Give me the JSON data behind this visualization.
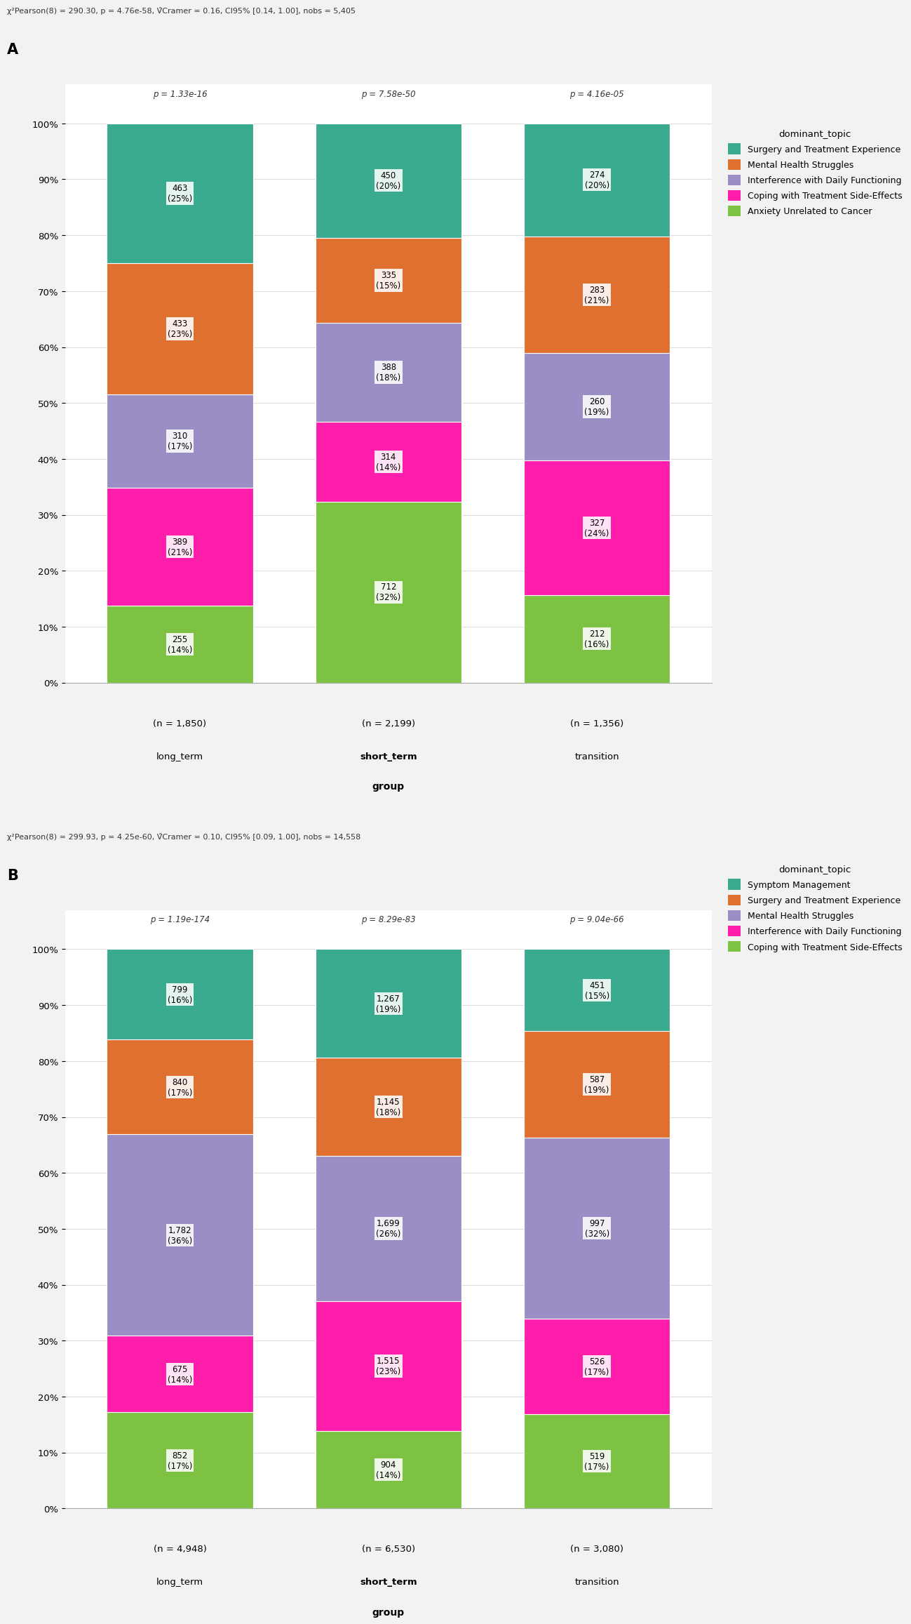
{
  "panel_A": {
    "stat_text": "χ²Pearson(8) = 290.30, p = 4.76e-58, V̂Cramer = 0.16, CI95% [0.14, 1.00], nobs = 5,405",
    "groups": [
      "long_term",
      "short_term",
      "transition"
    ],
    "n_labels": [
      "(n = 1,850)",
      "(n = 2,199)",
      "(n = 1,356)"
    ],
    "p_values": [
      "p = 1.33e-16",
      "p = 7.58e-50",
      "p = 4.16e-05"
    ],
    "topics": [
      "Surgery and Treatment Experience",
      "Mental Health Struggles",
      "Interference with Daily Functioning",
      "Coping with Treatment Side-Effects",
      "Anxiety Unrelated to Cancer"
    ],
    "colors": [
      "#3aab8e",
      "#e07030",
      "#9b8ec4",
      "#ff1dac",
      "#7dc242"
    ],
    "stack_order": [
      4,
      3,
      2,
      1,
      0
    ],
    "data": {
      "long_term": [
        463,
        433,
        310,
        389,
        255
      ],
      "short_term": [
        450,
        335,
        388,
        314,
        712
      ],
      "transition": [
        274,
        283,
        260,
        327,
        212
      ]
    },
    "pcts": {
      "long_term": [
        25,
        23,
        17,
        21,
        14
      ],
      "short_term": [
        20,
        15,
        18,
        14,
        32
      ],
      "transition": [
        20,
        21,
        19,
        24,
        16
      ]
    }
  },
  "panel_B": {
    "stat_text": "χ²Pearson(8) = 299.93, p = 4.25e-60, V̂Cramer = 0.10, CI95% [0.09, 1.00], nobs = 14,558",
    "groups": [
      "long_term",
      "short_term",
      "transition"
    ],
    "n_labels": [
      "(n = 4,948)",
      "(n = 6,530)",
      "(n = 3,080)"
    ],
    "p_values": [
      "p = 1.19e-174",
      "p = 8.29e-83",
      "p = 9.04e-66"
    ],
    "topics": [
      "Symptom Management",
      "Surgery and Treatment Experience",
      "Mental Health Struggles",
      "Interference with Daily Functioning",
      "Coping with Treatment Side-Effects"
    ],
    "colors": [
      "#3aab8e",
      "#e07030",
      "#9b8ec4",
      "#ff1dac",
      "#7dc242"
    ],
    "stack_order": [
      4,
      3,
      2,
      1,
      0
    ],
    "data": {
      "long_term": [
        799,
        840,
        1782,
        675,
        852
      ],
      "short_term": [
        1267,
        1145,
        1699,
        1515,
        904
      ],
      "transition": [
        451,
        587,
        997,
        526,
        519
      ]
    },
    "pcts": {
      "long_term": [
        16,
        17,
        36,
        14,
        17
      ],
      "short_term": [
        19,
        18,
        26,
        23,
        14
      ],
      "transition": [
        15,
        19,
        32,
        17,
        17
      ]
    }
  },
  "bg_color": "#f2f2f2",
  "plot_bg": "#ffffff",
  "bar_width": 0.7
}
